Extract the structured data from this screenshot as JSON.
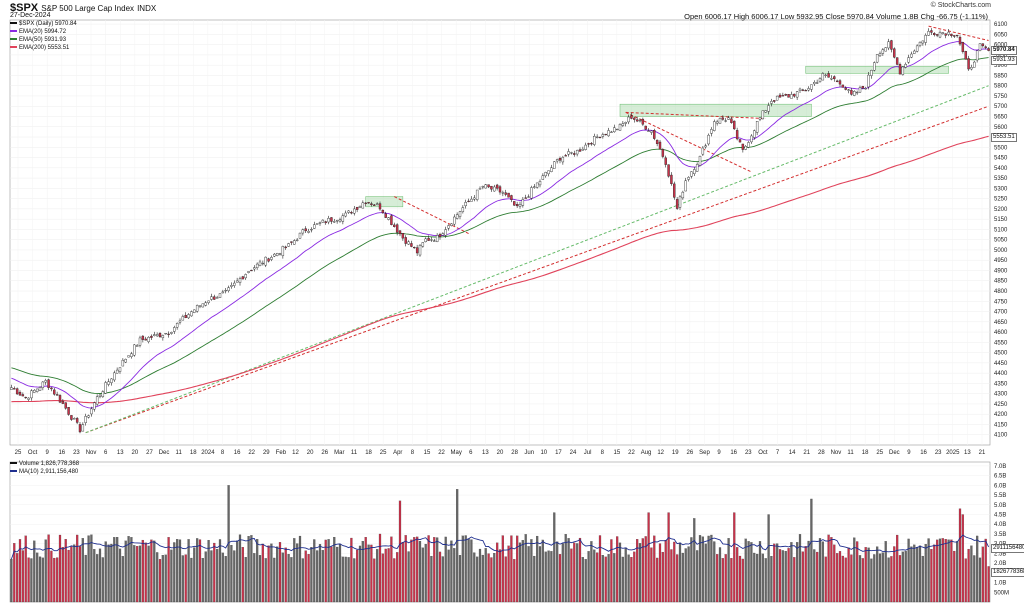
{
  "header": {
    "symbol": "$SPX",
    "name": "S&P 500 Large Cap Index",
    "exchange": "INDX",
    "date": "27-Dec-2024",
    "credit": "© StockCharts.com",
    "quote": "Open 6006.17  High 6006.17  Low 5932.95  Close 5970.84  Volume 1.8B  Chg -66.75 (-1.11%)"
  },
  "legend_price": [
    {
      "label": "$SPX (Daily) 5970.84",
      "color": "#111111"
    },
    {
      "label": "EMA(20) 5994.72",
      "color": "#8a2be2"
    },
    {
      "label": "EMA(50) 5931.93",
      "color": "#2e7d32"
    },
    {
      "label": "EMA(200) 5553.51",
      "color": "#e0435b"
    }
  ],
  "legend_volume": [
    {
      "label": "Volume 1,826,778,368",
      "color": "#111111"
    },
    {
      "label": "MA(10) 2,911,156,480",
      "color": "#1f2f8f"
    }
  ],
  "value_boxes": {
    "close": "5970.84",
    "ema50": "5931.93",
    "ema200": "5553.51",
    "vol_ma": "2911156480",
    "vol": "1826778368"
  },
  "colors": {
    "up": "#ffffff",
    "down": "#c8324a",
    "ema20": "#8a2be2",
    "ema50": "#2e7d32",
    "ema200": "#e0435b",
    "trend_red": "#d32f2f",
    "trend_green": "#66bb6a",
    "zone": "#a5d6a7",
    "vol_up": "#666666",
    "vol_down": "#c8324a",
    "vol_ma": "#1f2f8f"
  },
  "chart_data": {
    "type": "candlestick",
    "ylim": [
      4050,
      6120
    ],
    "y_ticks": [
      4100,
      4150,
      4200,
      4250,
      4300,
      4350,
      4400,
      4450,
      4500,
      4550,
      4600,
      4650,
      4700,
      4750,
      4800,
      4850,
      4900,
      4950,
      5000,
      5050,
      5100,
      5150,
      5200,
      5250,
      5300,
      5350,
      5400,
      5450,
      5500,
      5550,
      5600,
      5650,
      5700,
      5750,
      5800,
      5850,
      5900,
      5950,
      6000,
      6050,
      6100
    ],
    "x_ticks": [
      "25",
      "Oct",
      "9",
      "16",
      "23",
      "Nov",
      "6",
      "13",
      "20",
      "27",
      "Dec",
      "11",
      "18",
      "2024",
      "8",
      "16",
      "22",
      "29",
      "Feb",
      "12",
      "20",
      "26",
      "Mar",
      "11",
      "18",
      "25",
      "Apr",
      "8",
      "15",
      "22",
      "May",
      "6",
      "13",
      "20",
      "28",
      "Jun",
      "10",
      "17",
      "24",
      "Jul",
      "8",
      "15",
      "22",
      "Aug",
      "12",
      "19",
      "26",
      "Sep",
      "9",
      "16",
      "23",
      "Oct",
      "7",
      "14",
      "21",
      "28",
      "Nov",
      "11",
      "18",
      "25",
      "Dec",
      "9",
      "16",
      "23",
      "2025",
      "13",
      "21"
    ],
    "close_anchors": [
      [
        0,
        4330
      ],
      [
        5,
        4280
      ],
      [
        12,
        4360
      ],
      [
        18,
        4250
      ],
      [
        24,
        4125
      ],
      [
        30,
        4280
      ],
      [
        37,
        4420
      ],
      [
        45,
        4560
      ],
      [
        55,
        4600
      ],
      [
        63,
        4700
      ],
      [
        69,
        4760
      ],
      [
        75,
        4790
      ],
      [
        83,
        4900
      ],
      [
        90,
        4960
      ],
      [
        97,
        5020
      ],
      [
        103,
        5100
      ],
      [
        110,
        5140
      ],
      [
        117,
        5170
      ],
      [
        124,
        5240
      ],
      [
        129,
        5210
      ],
      [
        137,
        5060
      ],
      [
        142,
        4990
      ],
      [
        145,
        5050
      ],
      [
        149,
        5060
      ],
      [
        157,
        5190
      ],
      [
        165,
        5310
      ],
      [
        172,
        5280
      ],
      [
        177,
        5200
      ],
      [
        182,
        5290
      ],
      [
        192,
        5450
      ],
      [
        198,
        5480
      ],
      [
        206,
        5560
      ],
      [
        213,
        5600
      ],
      [
        217,
        5650
      ],
      [
        224,
        5580
      ],
      [
        229,
        5430
      ],
      [
        233,
        5200
      ],
      [
        236,
        5340
      ],
      [
        241,
        5450
      ],
      [
        246,
        5630
      ],
      [
        251,
        5640
      ],
      [
        256,
        5480
      ],
      [
        261,
        5620
      ],
      [
        266,
        5730
      ],
      [
        272,
        5750
      ],
      [
        278,
        5780
      ],
      [
        284,
        5850
      ],
      [
        290,
        5820
      ],
      [
        294,
        5750
      ],
      [
        299,
        5800
      ],
      [
        303,
        5960
      ],
      [
        307,
        6000
      ],
      [
        311,
        5870
      ],
      [
        315,
        5960
      ],
      [
        321,
        6060
      ],
      [
        327,
        6060
      ],
      [
        331,
        6050
      ],
      [
        335,
        5870
      ],
      [
        339,
        5990
      ],
      [
        342,
        5971
      ]
    ],
    "ema20_last": 5994.72,
    "ema50_last": 5931.93,
    "ema200_last": 5553.51,
    "volume": {
      "ylim": [
        0,
        7.2
      ],
      "unit": "B",
      "y_ticks": [
        "7.0B",
        "6.5B",
        "6.0B",
        "5.5B",
        "5.0B",
        "4.5B",
        "4.0B",
        "3.5B",
        "3.0B",
        "2.5B",
        "2.0B",
        "1.5B",
        "1.0B",
        "500M"
      ],
      "y_tick_values": [
        7.0,
        6.5,
        6.0,
        5.5,
        5.0,
        4.5,
        4.0,
        3.5,
        3.0,
        2.5,
        2.0,
        1.5,
        1.0,
        0.5
      ],
      "spikes": [
        [
          95,
          6.0
        ],
        [
          170,
          5.2
        ],
        [
          195,
          5.8
        ],
        [
          300,
          4.3
        ],
        [
          317,
          4.6
        ],
        [
          332,
          4.5
        ],
        [
          351,
          5.3
        ],
        [
          418,
          4.5
        ],
        [
          416,
          4.8
        ],
        [
          280,
          4.6
        ],
        [
          238,
          4.6
        ],
        [
          288,
          4.6
        ]
      ],
      "last": 1.83,
      "ma_last": 2.91
    }
  }
}
